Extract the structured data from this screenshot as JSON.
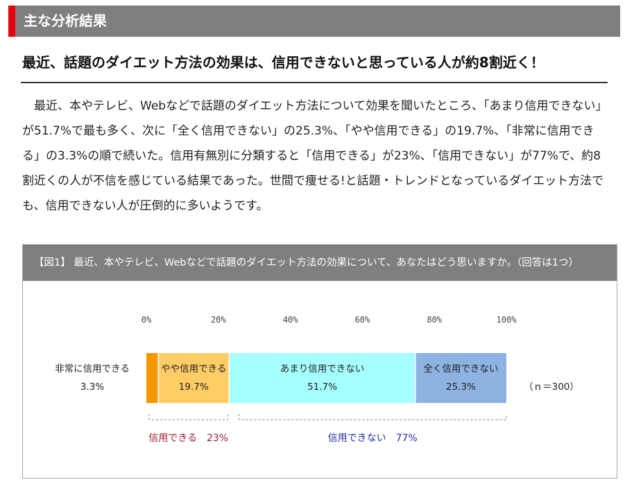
{
  "section": {
    "title": "主な分析結果",
    "accent_color": "#e60012"
  },
  "headline": "最近、話題のダイエット方法の効果は、信用できないと思っている人が約8割近く！",
  "body_text": "最近、本やテレビ、Webなどで話題のダイエット方法について効果を聞いたところ、「あまり信用できない」が51.7%で最も多く、次に「全く信用できない」の25.3%、「やや信用できる」の19.7%、「非常に信用できる」の3.3%の順で続いた。信用有無別に分類すると「信用できる」が23%、「信用できない」が77%で、約8割近くの人が不信を感じている結果であった。世間で痩せる!と話題・トレンドとなっているダイエット方法でも、信用できない人が圧倒的に多いようです。",
  "figure": {
    "title": "【図1】 最近、本やテレビ、Webなどで話題のダイエット方法の効果について、あなたはどう思いますか。（回答は1つ）"
  },
  "chart_data": {
    "type": "bar",
    "orientation": "horizontal-stacked-100",
    "x_ticks": [
      "0%",
      "20%",
      "40%",
      "60%",
      "80%",
      "100%"
    ],
    "xlim": [
      0,
      100
    ],
    "sample_note": "（ｎ＝300）",
    "series": [
      {
        "name": "非常に信用できる",
        "value": 3.3,
        "value_label": "3.3%",
        "color": "#f39800",
        "label_outside": true
      },
      {
        "name": "やや信用できる",
        "value": 19.7,
        "value_label": "19.7%",
        "color": "#ffcc66"
      },
      {
        "name": "あまり信用できない",
        "value": 51.7,
        "value_label": "51.7%",
        "color": "#a6ffff"
      },
      {
        "name": "全く信用できない",
        "value": 25.3,
        "value_label": "25.3%",
        "color": "#8db3e2"
      }
    ],
    "groups": [
      {
        "label": "信用できる　23%",
        "range": [
          0,
          23
        ],
        "color": "#9b1b30"
      },
      {
        "label": "信用できない　77%",
        "range": [
          23,
          100
        ],
        "color": "#1f2fa8"
      }
    ]
  }
}
